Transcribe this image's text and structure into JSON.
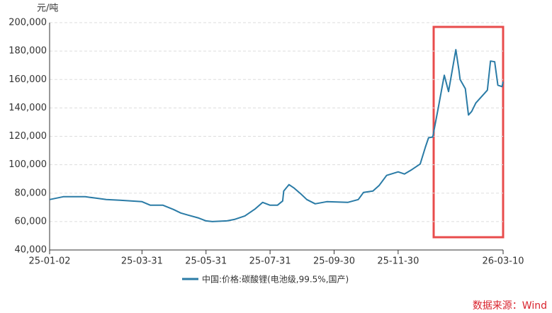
{
  "chart_data": {
    "type": "line",
    "y_unit": "元/吨",
    "source": "数据来源：Wind",
    "x": [
      "25-01-02",
      "25-01-15",
      "25-02-05",
      "25-02-15",
      "25-02-25",
      "25-03-10",
      "25-03-31",
      "25-04-08",
      "25-04-20",
      "25-04-30",
      "25-05-07",
      "25-05-14",
      "25-05-24",
      "25-05-31",
      "25-06-06",
      "25-06-20",
      "25-06-27",
      "25-07-07",
      "25-07-17",
      "25-07-24",
      "25-07-31",
      "25-08-07",
      "25-08-12",
      "25-08-13",
      "25-08-18",
      "25-08-23",
      "25-08-30",
      "25-09-04",
      "25-09-12",
      "25-09-23",
      "25-10-13",
      "25-10-23",
      "25-10-28",
      "25-11-06",
      "25-11-12",
      "25-11-19",
      "25-11-30",
      "25-12-06",
      "25-12-13",
      "25-12-21",
      "25-12-26",
      "25-12-29",
      "26-01-02",
      "26-01-07",
      "26-01-13",
      "26-01-17",
      "26-01-24",
      "26-01-27",
      "26-01-28",
      "26-02-02",
      "26-02-05",
      "26-02-08",
      "26-02-12",
      "26-02-23",
      "26-02-26",
      "26-03-02",
      "26-03-05",
      "26-03-09",
      "26-03-10"
    ],
    "series": [
      {
        "name": "中国:价格:碳酸锂(电池级,99.5%,国产)",
        "color": "#2a7ba6",
        "values": [
          75500,
          77500,
          77500,
          76500,
          75500,
          75000,
          74000,
          71500,
          71500,
          68500,
          66000,
          64500,
          62500,
          60500,
          60000,
          60500,
          61500,
          64000,
          69000,
          73500,
          71500,
          71500,
          74500,
          81500,
          86000,
          83500,
          79000,
          75500,
          72500,
          74000,
          73500,
          75500,
          80500,
          81500,
          85500,
          92500,
          95000,
          93500,
          96500,
          100500,
          112500,
          119000,
          119500,
          139000,
          163000,
          151500,
          181000,
          166000,
          160000,
          153500,
          135000,
          137500,
          143500,
          152500,
          173000,
          172500,
          156000,
          155000,
          158500
        ]
      }
    ],
    "xlim": [
      "25-01-02",
      "26-03-10"
    ],
    "xticks": [
      "25-01-02",
      "25-03-31",
      "25-05-31",
      "25-07-31",
      "25-09-30",
      "25-11-30",
      "26-03-10"
    ],
    "ylim": [
      40000,
      200000
    ],
    "yticks": [
      {
        "value": 40000,
        "label": "40,000"
      },
      {
        "value": 60000,
        "label": "60,000"
      },
      {
        "value": 80000,
        "label": "80,000"
      },
      {
        "value": 100000,
        "label": "100,000"
      },
      {
        "value": 120000,
        "label": "120,000"
      },
      {
        "value": 140000,
        "label": "140,000"
      },
      {
        "value": 160000,
        "label": "160,000"
      },
      {
        "value": 180000,
        "label": "180,000"
      },
      {
        "value": 200000,
        "label": "200,000"
      }
    ],
    "grid": true
  }
}
